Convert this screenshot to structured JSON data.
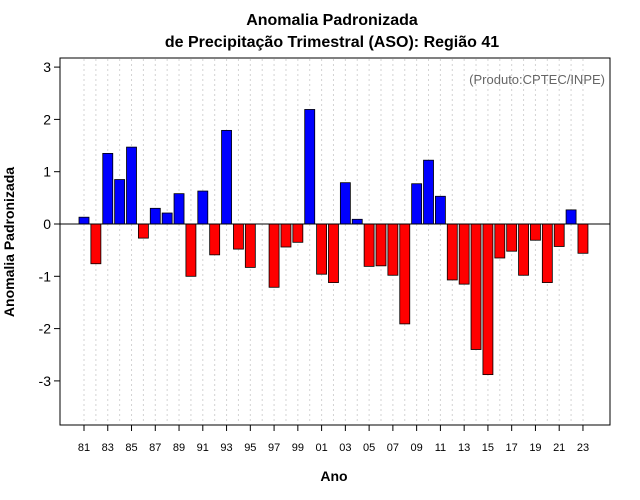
{
  "colors": {
    "positive": "#0000ff",
    "negative": "#ff0000",
    "grid": "#d3d3d3",
    "credit": "#666666"
  },
  "chart_data": {
    "type": "bar",
    "title": "Anomalia Padronizada",
    "subtitle": "de Precipitação Trimestral (ASO): Região 41",
    "xlabel": "Ano",
    "ylabel": "Anomalia Padronizada",
    "annotation": "(Produto:CPTEC/INPE)",
    "ylim": [
      -3.9,
      3.2
    ],
    "yticks": [
      -3,
      -2,
      -1,
      0,
      1,
      2,
      3
    ],
    "ytick_labels": [
      "-3",
      "-2",
      "-1",
      "0",
      "1",
      "2",
      "3"
    ],
    "xtick_labels": [
      "81",
      "83",
      "85",
      "87",
      "89",
      "91",
      "93",
      "95",
      "97",
      "99",
      "01",
      "03",
      "05",
      "07",
      "09",
      "11",
      "13",
      "15",
      "17",
      "19",
      "21",
      "23"
    ],
    "grid": true,
    "categories": [
      "81",
      "82",
      "83",
      "84",
      "85",
      "86",
      "87",
      "88",
      "89",
      "90",
      "91",
      "92",
      "93",
      "94",
      "95",
      "96",
      "97",
      "98",
      "99",
      "00",
      "01",
      "02",
      "03",
      "04",
      "05",
      "06",
      "07",
      "08",
      "09",
      "10",
      "11",
      "12",
      "13",
      "14",
      "15",
      "16",
      "17",
      "18",
      "19",
      "20",
      "21",
      "22",
      "23"
    ],
    "values": [
      0.13,
      -0.76,
      1.35,
      0.85,
      1.47,
      -0.27,
      0.3,
      0.21,
      0.58,
      -1.0,
      0.63,
      -0.59,
      1.79,
      -0.48,
      -0.83,
      null,
      -1.21,
      -0.44,
      -0.35,
      2.19,
      -0.96,
      -1.12,
      0.79,
      0.09,
      -0.81,
      -0.8,
      -0.98,
      -1.91,
      0.77,
      1.22,
      0.53,
      -1.07,
      -1.15,
      -2.4,
      -2.88,
      -0.65,
      -0.52,
      -0.98,
      -0.31,
      -1.12,
      -0.43,
      0.27,
      -0.56
    ]
  }
}
